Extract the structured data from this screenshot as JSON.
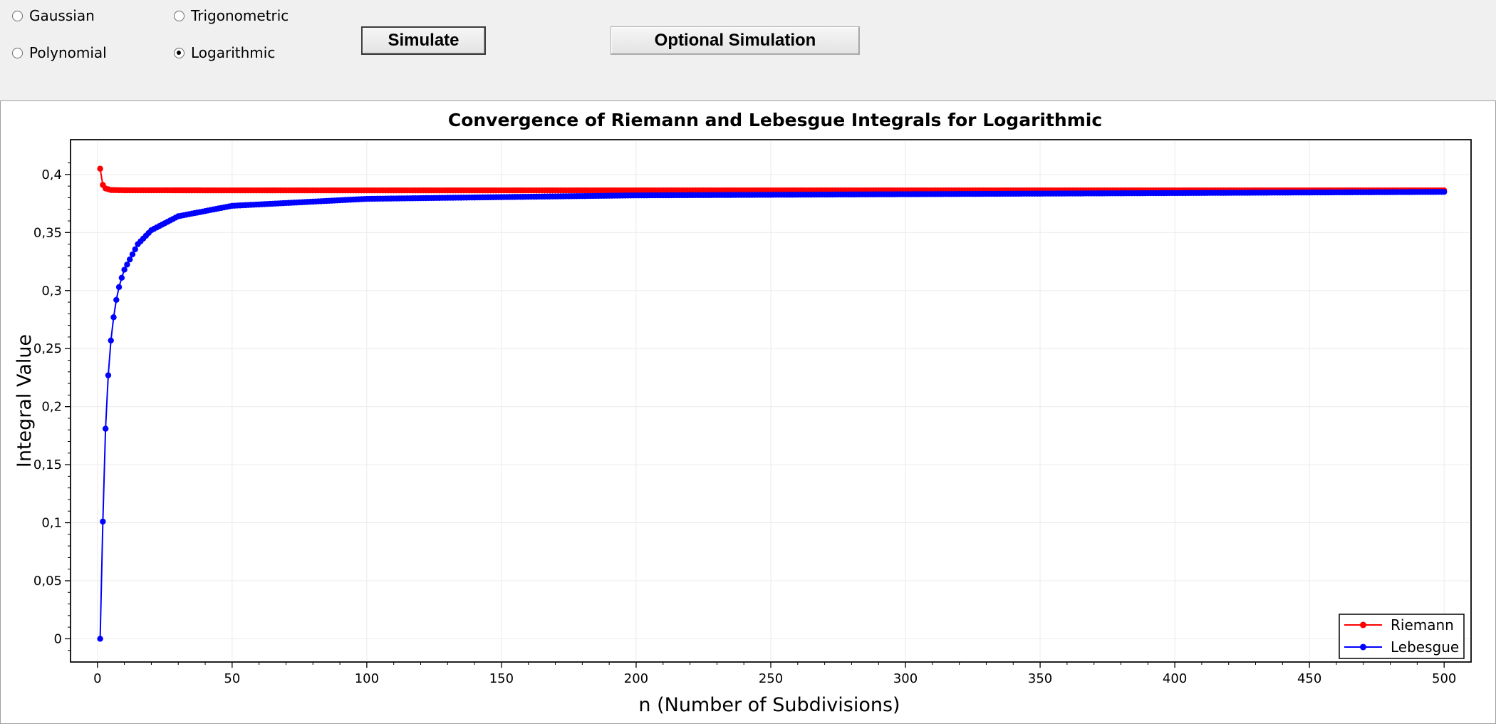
{
  "controls": {
    "radio_options": [
      {
        "label": "Gaussian",
        "checked": false
      },
      {
        "label": "Trigonometric",
        "checked": false
      },
      {
        "label": "Polynomial",
        "checked": false
      },
      {
        "label": "Logarithmic",
        "checked": true
      }
    ],
    "simulate_label": "Simulate",
    "optional_simulation_label": "Optional Simulation"
  },
  "chart_data": {
    "type": "line",
    "title": "Convergence of Riemann and Lebesgue Integrals for Logarithmic",
    "xlabel": "n (Number of Subdivisions)",
    "ylabel": "Integral Value",
    "xlim": [
      -10,
      510
    ],
    "ylim": [
      -0.02,
      0.43
    ],
    "x_ticks": [
      0,
      50,
      100,
      150,
      200,
      250,
      300,
      350,
      400,
      450,
      500
    ],
    "y_ticks": [
      0,
      0.05,
      0.1,
      0.15,
      0.2,
      0.25,
      0.3,
      0.35,
      0.4
    ],
    "y_tick_labels": [
      "0",
      "0,05",
      "0,1",
      "0,15",
      "0,2",
      "0,25",
      "0,3",
      "0,35",
      "0,4"
    ],
    "x_range": [
      1,
      500
    ],
    "grid": true,
    "legend_position": "bottom-right",
    "series": [
      {
        "name": "Riemann",
        "color": "#ff0000",
        "marker": "circle",
        "sample_points": [
          [
            1,
            0.405
          ],
          [
            2,
            0.391
          ],
          [
            3,
            0.388
          ],
          [
            5,
            0.3866
          ],
          [
            10,
            0.3864
          ],
          [
            50,
            0.3863
          ],
          [
            500,
            0.3863
          ]
        ]
      },
      {
        "name": "Lebesgue",
        "color": "#0000ff",
        "marker": "circle",
        "sample_points": [
          [
            1,
            0.0
          ],
          [
            2,
            0.101
          ],
          [
            3,
            0.181
          ],
          [
            4,
            0.227
          ],
          [
            5,
            0.257
          ],
          [
            6,
            0.277
          ],
          [
            7,
            0.292
          ],
          [
            8,
            0.303
          ],
          [
            9,
            0.311
          ],
          [
            10,
            0.318
          ],
          [
            15,
            0.34
          ],
          [
            20,
            0.352
          ],
          [
            30,
            0.364
          ],
          [
            50,
            0.373
          ],
          [
            100,
            0.379
          ],
          [
            200,
            0.382
          ],
          [
            500,
            0.385
          ]
        ]
      }
    ]
  }
}
